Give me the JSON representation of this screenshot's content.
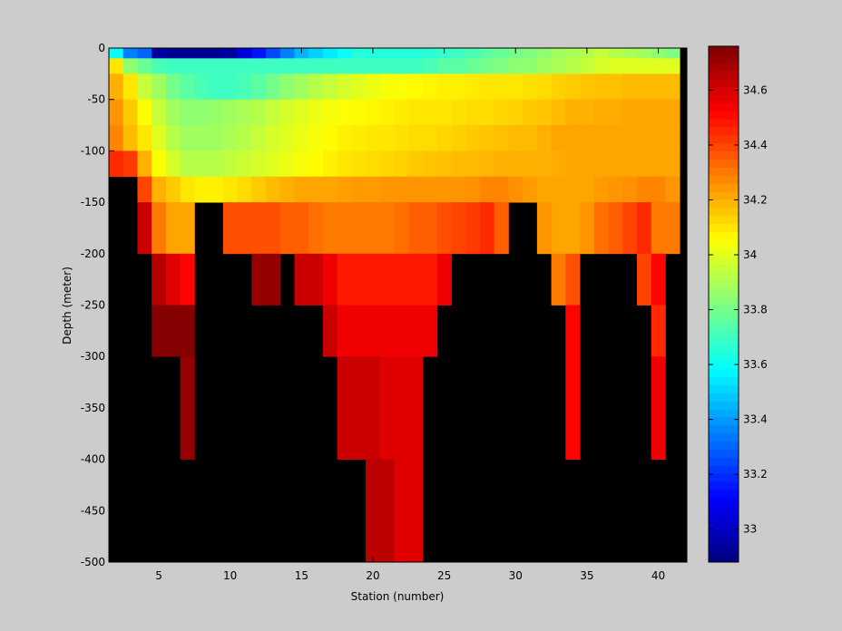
{
  "figure": {
    "background": "#cccccc",
    "mask_color": "#000000",
    "colormap": "jet"
  },
  "chart_data": {
    "type": "heatmap",
    "title": "",
    "xlabel": "Station (number)",
    "ylabel": "Depth (meter)",
    "xlim": [
      1.5,
      42
    ],
    "ylim": [
      -500,
      0
    ],
    "xticks": [
      5,
      10,
      15,
      20,
      25,
      30,
      35,
      40
    ],
    "yticks": [
      0,
      -50,
      -100,
      -150,
      -200,
      -250,
      -300,
      -350,
      -400,
      -450,
      -500
    ],
    "stations": [
      2,
      3,
      4,
      5,
      6,
      7,
      8,
      9,
      10,
      11,
      12,
      13,
      14,
      15,
      16,
      17,
      18,
      19,
      20,
      21,
      22,
      23,
      24,
      25,
      26,
      27,
      28,
      29,
      30,
      31,
      32,
      33,
      34,
      35,
      36,
      37,
      38,
      39,
      40,
      41
    ],
    "depth_edges": [
      0,
      -10,
      -25,
      -50,
      -75,
      -100,
      -125,
      -150,
      -200,
      -250,
      -300,
      -400,
      -500
    ],
    "colorbar": {
      "clim": [
        32.88,
        34.76
      ],
      "ticks": [
        33,
        33.2,
        33.4,
        33.6,
        33.8,
        34,
        34.2,
        34.4,
        34.6
      ]
    },
    "rows": [
      [
        33.6,
        33.35,
        33.3,
        32.95,
        32.92,
        32.92,
        32.92,
        32.92,
        32.95,
        33.05,
        33.15,
        33.25,
        33.35,
        33.45,
        33.5,
        33.55,
        33.6,
        33.65,
        33.65,
        33.65,
        33.65,
        33.65,
        33.66,
        33.68,
        33.7,
        33.72,
        33.75,
        33.78,
        33.8,
        33.82,
        33.85,
        33.88,
        33.9,
        33.92,
        33.95,
        33.92,
        33.9,
        33.88,
        33.85,
        33.82
      ],
      [
        34.1,
        33.85,
        33.78,
        33.72,
        33.7,
        33.7,
        33.7,
        33.7,
        33.7,
        33.7,
        33.7,
        33.7,
        33.7,
        33.7,
        33.7,
        33.7,
        33.7,
        33.7,
        33.7,
        33.7,
        33.7,
        33.7,
        33.72,
        33.75,
        33.75,
        33.78,
        33.8,
        33.82,
        33.85,
        33.85,
        33.88,
        33.9,
        33.92,
        33.95,
        33.98,
        34.0,
        34.0,
        34.0,
        34.0,
        34.0
      ],
      [
        34.2,
        34.1,
        33.95,
        33.88,
        33.8,
        33.75,
        33.72,
        33.7,
        33.7,
        33.72,
        33.75,
        33.8,
        33.85,
        33.88,
        33.92,
        33.95,
        33.98,
        34.0,
        34.02,
        34.04,
        34.05,
        34.06,
        34.07,
        34.08,
        34.08,
        34.09,
        34.1,
        34.1,
        34.1,
        34.11,
        34.12,
        34.14,
        34.15,
        34.16,
        34.17,
        34.17,
        34.18,
        34.18,
        34.18,
        34.18
      ],
      [
        34.25,
        34.15,
        34.05,
        33.95,
        33.88,
        33.85,
        33.85,
        33.86,
        33.88,
        33.9,
        33.92,
        33.95,
        33.98,
        34.0,
        34.02,
        34.04,
        34.05,
        34.06,
        34.07,
        34.08,
        34.09,
        34.1,
        34.1,
        34.1,
        34.11,
        34.12,
        34.12,
        34.13,
        34.14,
        34.15,
        34.16,
        34.18,
        34.2,
        34.2,
        34.21,
        34.21,
        34.22,
        34.22,
        34.22,
        34.22
      ],
      [
        34.28,
        34.18,
        34.1,
        34.0,
        33.92,
        33.88,
        33.88,
        33.88,
        33.9,
        33.92,
        33.95,
        33.98,
        34.0,
        34.02,
        34.04,
        34.06,
        34.08,
        34.09,
        34.1,
        34.1,
        34.11,
        34.12,
        34.12,
        34.13,
        34.14,
        34.15,
        34.16,
        34.17,
        34.18,
        34.18,
        34.2,
        34.22,
        34.22,
        34.22,
        34.22,
        34.22,
        34.22,
        34.22,
        34.22,
        34.22
      ],
      [
        34.45,
        34.42,
        34.2,
        34.05,
        33.98,
        33.92,
        33.92,
        33.92,
        33.94,
        33.96,
        33.98,
        34.0,
        34.02,
        34.04,
        34.06,
        34.08,
        34.1,
        34.11,
        34.12,
        34.13,
        34.14,
        34.15,
        34.16,
        34.17,
        34.18,
        34.18,
        34.19,
        34.2,
        34.2,
        34.2,
        34.2,
        34.21,
        34.22,
        34.22,
        34.22,
        34.22,
        34.22,
        34.22,
        34.22,
        34.22
      ],
      [
        null,
        null,
        34.4,
        34.2,
        34.15,
        34.1,
        34.08,
        34.08,
        34.1,
        34.12,
        34.15,
        34.18,
        34.2,
        34.22,
        34.22,
        34.22,
        34.23,
        34.24,
        34.24,
        34.25,
        34.25,
        34.25,
        34.25,
        34.25,
        34.25,
        34.26,
        34.28,
        34.28,
        34.26,
        34.24,
        34.22,
        34.22,
        34.22,
        34.22,
        34.24,
        34.25,
        34.26,
        34.28,
        34.28,
        34.25
      ],
      [
        null,
        null,
        34.62,
        34.3,
        34.22,
        34.22,
        null,
        null,
        34.38,
        34.38,
        34.38,
        34.38,
        34.35,
        34.35,
        34.32,
        34.3,
        34.3,
        34.3,
        34.3,
        34.3,
        34.32,
        34.35,
        34.35,
        34.38,
        34.4,
        34.42,
        34.45,
        34.35,
        null,
        null,
        34.25,
        34.22,
        34.22,
        34.25,
        34.32,
        34.35,
        34.4,
        34.45,
        34.3,
        34.3
      ],
      [
        null,
        null,
        null,
        34.66,
        34.58,
        34.52,
        null,
        null,
        null,
        null,
        34.72,
        34.72,
        null,
        34.62,
        34.62,
        34.55,
        34.48,
        34.48,
        34.48,
        34.48,
        34.48,
        34.48,
        34.48,
        34.55,
        null,
        null,
        null,
        null,
        null,
        null,
        null,
        34.3,
        34.38,
        null,
        null,
        null,
        null,
        34.4,
        34.52,
        null
      ],
      [
        null,
        null,
        null,
        34.75,
        34.75,
        34.75,
        null,
        null,
        null,
        null,
        null,
        null,
        null,
        null,
        null,
        34.62,
        34.55,
        34.55,
        34.55,
        34.55,
        34.55,
        34.55,
        34.55,
        null,
        null,
        null,
        null,
        null,
        null,
        null,
        null,
        null,
        34.52,
        null,
        null,
        null,
        null,
        null,
        34.45,
        null
      ],
      [
        null,
        null,
        null,
        null,
        null,
        34.72,
        null,
        null,
        null,
        null,
        null,
        null,
        null,
        null,
        null,
        null,
        34.62,
        34.62,
        34.62,
        34.58,
        34.58,
        34.58,
        null,
        null,
        null,
        null,
        null,
        null,
        null,
        null,
        null,
        null,
        34.52,
        null,
        null,
        null,
        null,
        null,
        34.55,
        null
      ],
      [
        null,
        null,
        null,
        null,
        null,
        null,
        null,
        null,
        null,
        null,
        null,
        null,
        null,
        null,
        null,
        null,
        null,
        null,
        34.65,
        34.65,
        34.58,
        34.58,
        null,
        null,
        null,
        null,
        null,
        null,
        null,
        null,
        null,
        null,
        null,
        null,
        null,
        null,
        null,
        null,
        null,
        null
      ]
    ]
  }
}
